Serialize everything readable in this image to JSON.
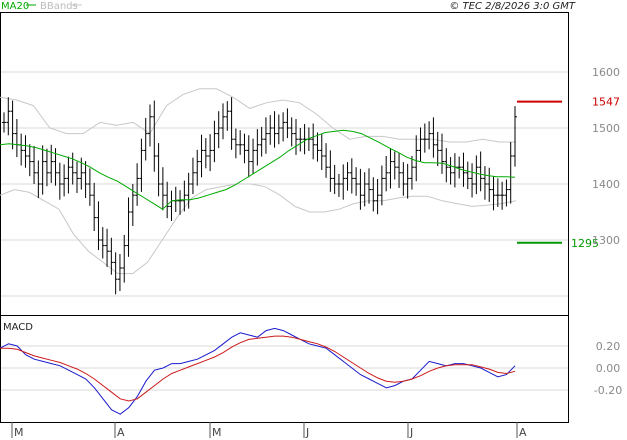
{
  "header": {
    "legend_ma": "MA20",
    "legend_bb": "BBands",
    "copyright": "© TEC 2/8/2026 3:0 GMT"
  },
  "macd": {
    "label": "MACD"
  },
  "colors": {
    "ma": "#00aa00",
    "bbands": "#c8c8c8",
    "resistance": "#cc0000",
    "support": "#009900",
    "macd": "#1a1acc",
    "signal": "#cc1a1a",
    "bars": "#000000",
    "grid": "#d9d9d9"
  },
  "chart_data": [
    {
      "type": "ohlc",
      "y_ticks": [
        1300,
        1400,
        1500,
        1600
      ],
      "ylim": [
        1180,
        1610
      ],
      "x_labels": [
        "M",
        "A",
        "M",
        "J",
        "J",
        "A"
      ],
      "resistance": {
        "value": 1547,
        "label": "1547"
      },
      "support": {
        "value": 1295,
        "label": "1295"
      },
      "close": [
        1510,
        1530,
        1490,
        1470,
        1460,
        1450,
        1440,
        1420,
        1400,
        1440,
        1420,
        1440,
        1420,
        1400,
        1410,
        1430,
        1420,
        1410,
        1420,
        1400,
        1380,
        1340,
        1300,
        1290,
        1280,
        1260,
        1230,
        1250,
        1290,
        1350,
        1380,
        1410,
        1460,
        1490,
        1520,
        1450,
        1400,
        1380,
        1360,
        1370,
        1370,
        1370,
        1380,
        1400,
        1420,
        1440,
        1460,
        1450,
        1460,
        1490,
        1500,
        1520,
        1530,
        1480,
        1470,
        1470,
        1460,
        1440,
        1460,
        1470,
        1480,
        1490,
        1500,
        1490,
        1500,
        1510,
        1500,
        1490,
        1480,
        1480,
        1480,
        1480,
        1470,
        1460,
        1450,
        1430,
        1410,
        1400,
        1400,
        1410,
        1420,
        1410,
        1400,
        1380,
        1400,
        1390,
        1370,
        1380,
        1410,
        1420,
        1440,
        1430,
        1420,
        1400,
        1410,
        1430,
        1460,
        1480,
        1480,
        1490,
        1470,
        1460,
        1440,
        1430,
        1420,
        1430,
        1430,
        1420,
        1410,
        1400,
        1430,
        1410,
        1400,
        1390,
        1380,
        1380,
        1380,
        1390,
        1450,
        1520
      ],
      "ma20": [
        1470,
        1472,
        1470,
        1468,
        1465,
        1460,
        1455,
        1450,
        1445,
        1438,
        1430,
        1420,
        1412,
        1405,
        1395,
        1385,
        1375,
        1365,
        1355,
        1370,
        1372,
        1372,
        1375,
        1380,
        1385,
        1390,
        1398,
        1408,
        1418,
        1428,
        1438,
        1448,
        1460,
        1470,
        1480,
        1486,
        1492,
        1494,
        1496,
        1494,
        1490,
        1482,
        1474,
        1465,
        1457,
        1448,
        1442,
        1438,
        1438,
        1437,
        1432,
        1426,
        1422,
        1418,
        1415,
        1413,
        1413,
        1412
      ],
      "bb_upper": [
        1555,
        1550,
        1540,
        1500,
        1490,
        1490,
        1510,
        1505,
        1510,
        1490,
        1540,
        1560,
        1570,
        1570,
        1555,
        1535,
        1545,
        1550,
        1545,
        1525,
        1500,
        1480,
        1485,
        1485,
        1480,
        1480,
        1480,
        1475,
        1475,
        1480,
        1475,
        1475
      ],
      "bb_lower": [
        1380,
        1390,
        1385,
        1370,
        1355,
        1310,
        1280,
        1260,
        1240,
        1240,
        1260,
        1300,
        1340,
        1375,
        1390,
        1395,
        1400,
        1400,
        1395,
        1380,
        1360,
        1350,
        1350,
        1355,
        1365,
        1370,
        1370,
        1375,
        1378,
        1378,
        1370,
        1365,
        1360,
        1362,
        1365,
        1370
      ]
    },
    {
      "type": "line",
      "title": "MACD",
      "y_ticks": [
        0.2,
        0.0,
        -0.2
      ],
      "y_tick_labels": [
        "0.20",
        "0.00",
        "-0.20"
      ],
      "ylim": [
        -0.48,
        0.4
      ],
      "series": [
        {
          "values": [
            0.18,
            0.22,
            0.2,
            0.12,
            0.08,
            0.06,
            0.04,
            0.02,
            -0.02,
            -0.06,
            -0.1,
            -0.18,
            -0.28,
            -0.38,
            -0.42,
            -0.36,
            -0.26,
            -0.12,
            -0.02,
            0.0,
            0.04,
            0.04,
            0.06,
            0.08,
            0.12,
            0.16,
            0.22,
            0.28,
            0.32,
            0.3,
            0.28,
            0.34,
            0.36,
            0.34,
            0.3,
            0.26,
            0.22,
            0.2,
            0.18,
            0.12,
            0.06,
            0.0,
            -0.06,
            -0.1,
            -0.14,
            -0.18,
            -0.16,
            -0.12,
            -0.1,
            -0.02,
            0.06,
            0.04,
            0.02,
            0.04,
            0.04,
            0.02,
            0.0,
            -0.04,
            -0.08,
            -0.06,
            0.02
          ]
        },
        {
          "values": [
            0.18,
            0.18,
            0.17,
            0.14,
            0.11,
            0.09,
            0.07,
            0.05,
            0.02,
            -0.01,
            -0.05,
            -0.1,
            -0.16,
            -0.22,
            -0.28,
            -0.3,
            -0.28,
            -0.22,
            -0.16,
            -0.1,
            -0.05,
            -0.02,
            0.01,
            0.04,
            0.07,
            0.1,
            0.14,
            0.19,
            0.23,
            0.26,
            0.27,
            0.28,
            0.29,
            0.29,
            0.28,
            0.26,
            0.24,
            0.22,
            0.19,
            0.15,
            0.1,
            0.05,
            0.0,
            -0.05,
            -0.09,
            -0.12,
            -0.13,
            -0.12,
            -0.1,
            -0.07,
            -0.03,
            0.0,
            0.02,
            0.03,
            0.03,
            0.03,
            0.01,
            -0.01,
            -0.04,
            -0.05,
            -0.03
          ]
        }
      ]
    }
  ]
}
